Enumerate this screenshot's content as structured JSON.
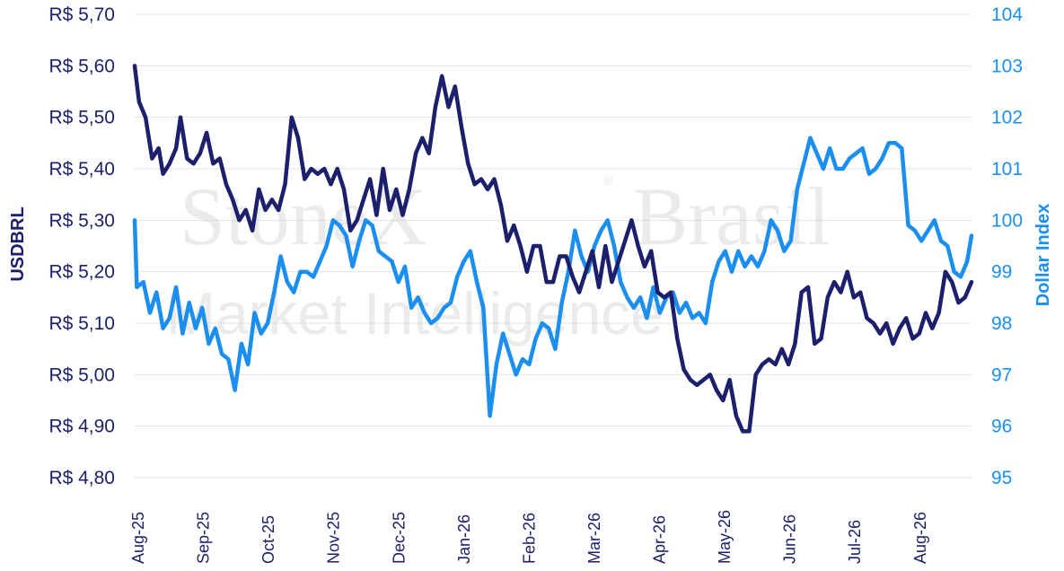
{
  "watermark": {
    "brand": "StoneX",
    "reg": "®",
    "brand2": "Brasil",
    "subtitle": "Market Intelligence"
  },
  "chart_data": {
    "type": "line",
    "title": "",
    "xlabel": "",
    "ylabel": "USDBRL",
    "y2label": "Dollar Index",
    "x_ticks": [
      "Aug-25",
      "Sep-25",
      "Oct-25",
      "Nov-25",
      "Dec-25",
      "Jan-26",
      "Feb-26",
      "Mar-26",
      "Apr-26",
      "May-26",
      "Jun-26",
      "Jul-26",
      "Aug-26"
    ],
    "ylim": [
      4.8,
      5.7
    ],
    "y_ticks": [
      "R$ 4,80",
      "R$ 4,90",
      "R$ 5,00",
      "R$ 5,10",
      "R$ 5,20",
      "R$ 5,30",
      "R$ 5,40",
      "R$ 5,50",
      "R$ 5,60",
      "R$ 5,70"
    ],
    "y2lim": [
      95,
      104
    ],
    "y2_ticks": [
      "95",
      "96",
      "97",
      "98",
      "99",
      "100",
      "101",
      "102",
      "103",
      "104"
    ],
    "grid": true,
    "colors": {
      "usdbrl": "#1c1f6b",
      "dxy": "#1b8ff0"
    },
    "series": [
      {
        "name": "USDBRL",
        "axis": "left",
        "points": [
          [
            "2025-08-01",
            5.6
          ],
          [
            "2025-08-03",
            5.53
          ],
          [
            "2025-08-06",
            5.5
          ],
          [
            "2025-08-09",
            5.42
          ],
          [
            "2025-08-12",
            5.44
          ],
          [
            "2025-08-14",
            5.39
          ],
          [
            "2025-08-17",
            5.41
          ],
          [
            "2025-08-20",
            5.44
          ],
          [
            "2025-08-22",
            5.5
          ],
          [
            "2025-08-25",
            5.42
          ],
          [
            "2025-08-28",
            5.41
          ],
          [
            "2025-08-31",
            5.43
          ],
          [
            "2025-09-03",
            5.47
          ],
          [
            "2025-09-06",
            5.41
          ],
          [
            "2025-09-09",
            5.42
          ],
          [
            "2025-09-12",
            5.37
          ],
          [
            "2025-09-15",
            5.34
          ],
          [
            "2025-09-18",
            5.3
          ],
          [
            "2025-09-21",
            5.32
          ],
          [
            "2025-09-24",
            5.28
          ],
          [
            "2025-09-27",
            5.36
          ],
          [
            "2025-09-30",
            5.32
          ],
          [
            "2025-10-03",
            5.34
          ],
          [
            "2025-10-06",
            5.32
          ],
          [
            "2025-10-09",
            5.37
          ],
          [
            "2025-10-12",
            5.5
          ],
          [
            "2025-10-15",
            5.46
          ],
          [
            "2025-10-18",
            5.38
          ],
          [
            "2025-10-21",
            5.4
          ],
          [
            "2025-10-24",
            5.39
          ],
          [
            "2025-10-27",
            5.4
          ],
          [
            "2025-10-30",
            5.37
          ],
          [
            "2025-11-02",
            5.4
          ],
          [
            "2025-11-05",
            5.36
          ],
          [
            "2025-11-08",
            5.28
          ],
          [
            "2025-11-11",
            5.3
          ],
          [
            "2025-11-14",
            5.34
          ],
          [
            "2025-11-17",
            5.38
          ],
          [
            "2025-11-20",
            5.31
          ],
          [
            "2025-11-23",
            5.4
          ],
          [
            "2025-11-26",
            5.32
          ],
          [
            "2025-11-29",
            5.36
          ],
          [
            "2025-12-02",
            5.31
          ],
          [
            "2025-12-05",
            5.36
          ],
          [
            "2025-12-08",
            5.43
          ],
          [
            "2025-12-11",
            5.46
          ],
          [
            "2025-12-14",
            5.43
          ],
          [
            "2025-12-17",
            5.52
          ],
          [
            "2025-12-20",
            5.58
          ],
          [
            "2025-12-23",
            5.52
          ],
          [
            "2025-12-26",
            5.56
          ],
          [
            "2025-12-29",
            5.48
          ],
          [
            "2026-01-01",
            5.41
          ],
          [
            "2026-01-04",
            5.37
          ],
          [
            "2026-01-07",
            5.38
          ],
          [
            "2026-01-10",
            5.36
          ],
          [
            "2026-01-13",
            5.38
          ],
          [
            "2026-01-16",
            5.33
          ],
          [
            "2026-01-19",
            5.26
          ],
          [
            "2026-01-22",
            5.29
          ],
          [
            "2026-01-25",
            5.25
          ],
          [
            "2026-01-28",
            5.2
          ],
          [
            "2026-01-31",
            5.25
          ],
          [
            "2026-02-03",
            5.25
          ],
          [
            "2026-02-06",
            5.18
          ],
          [
            "2026-02-09",
            5.18
          ],
          [
            "2026-02-12",
            5.23
          ],
          [
            "2026-02-15",
            5.23
          ],
          [
            "2026-02-18",
            5.19
          ],
          [
            "2026-02-21",
            5.16
          ],
          [
            "2026-02-24",
            5.2
          ],
          [
            "2026-02-27",
            5.24
          ],
          [
            "2026-03-02",
            5.17
          ],
          [
            "2026-03-05",
            5.25
          ],
          [
            "2026-03-08",
            5.18
          ],
          [
            "2026-03-11",
            5.22
          ],
          [
            "2026-03-14",
            5.26
          ],
          [
            "2026-03-17",
            5.3
          ],
          [
            "2026-03-20",
            5.25
          ],
          [
            "2026-03-23",
            5.21
          ],
          [
            "2026-03-26",
            5.24
          ],
          [
            "2026-03-29",
            5.16
          ],
          [
            "2026-04-01",
            5.15
          ],
          [
            "2026-04-04",
            5.16
          ],
          [
            "2026-04-07",
            5.07
          ],
          [
            "2026-04-10",
            5.01
          ],
          [
            "2026-04-13",
            4.99
          ],
          [
            "2026-04-16",
            4.98
          ],
          [
            "2026-04-19",
            4.99
          ],
          [
            "2026-04-22",
            5.0
          ],
          [
            "2026-04-25",
            4.97
          ],
          [
            "2026-04-28",
            4.95
          ],
          [
            "2026-05-01",
            4.99
          ],
          [
            "2026-05-04",
            4.92
          ],
          [
            "2026-05-07",
            4.89
          ],
          [
            "2026-05-10",
            4.89
          ],
          [
            "2026-05-13",
            5.0
          ],
          [
            "2026-05-16",
            5.02
          ],
          [
            "2026-05-19",
            5.03
          ],
          [
            "2026-05-22",
            5.02
          ],
          [
            "2026-05-25",
            5.05
          ],
          [
            "2026-05-28",
            5.02
          ],
          [
            "2026-05-31",
            5.06
          ],
          [
            "2026-06-03",
            5.16
          ],
          [
            "2026-06-06",
            5.17
          ],
          [
            "2026-06-09",
            5.06
          ],
          [
            "2026-06-12",
            5.07
          ],
          [
            "2026-06-15",
            5.15
          ],
          [
            "2026-06-18",
            5.18
          ],
          [
            "2026-06-21",
            5.16
          ],
          [
            "2026-06-24",
            5.2
          ],
          [
            "2026-06-27",
            5.15
          ],
          [
            "2026-06-30",
            5.16
          ],
          [
            "2026-07-03",
            5.11
          ],
          [
            "2026-07-06",
            5.1
          ],
          [
            "2026-07-09",
            5.08
          ],
          [
            "2026-07-12",
            5.1
          ],
          [
            "2026-07-15",
            5.06
          ],
          [
            "2026-07-18",
            5.09
          ],
          [
            "2026-07-21",
            5.11
          ],
          [
            "2026-07-24",
            5.07
          ],
          [
            "2026-07-27",
            5.08
          ],
          [
            "2026-07-30",
            5.12
          ],
          [
            "2026-08-02",
            5.09
          ],
          [
            "2026-08-05",
            5.12
          ],
          [
            "2026-08-08",
            5.2
          ],
          [
            "2026-08-11",
            5.18
          ],
          [
            "2026-08-14",
            5.14
          ],
          [
            "2026-08-17",
            5.15
          ],
          [
            "2026-08-20",
            5.18
          ]
        ]
      },
      {
        "name": "Dollar Index",
        "axis": "right",
        "points": [
          [
            "2025-08-01",
            100.0
          ],
          [
            "2025-08-02",
            98.7
          ],
          [
            "2025-08-05",
            98.8
          ],
          [
            "2025-08-08",
            98.2
          ],
          [
            "2025-08-11",
            98.6
          ],
          [
            "2025-08-14",
            97.9
          ],
          [
            "2025-08-17",
            98.1
          ],
          [
            "2025-08-20",
            98.7
          ],
          [
            "2025-08-23",
            97.8
          ],
          [
            "2025-08-26",
            98.4
          ],
          [
            "2025-08-29",
            97.9
          ],
          [
            "2025-09-01",
            98.3
          ],
          [
            "2025-09-04",
            97.6
          ],
          [
            "2025-09-07",
            97.9
          ],
          [
            "2025-09-10",
            97.4
          ],
          [
            "2025-09-13",
            97.3
          ],
          [
            "2025-09-16",
            96.7
          ],
          [
            "2025-09-19",
            97.6
          ],
          [
            "2025-09-22",
            97.2
          ],
          [
            "2025-09-25",
            98.2
          ],
          [
            "2025-09-28",
            97.8
          ],
          [
            "2025-10-01",
            98.0
          ],
          [
            "2025-10-04",
            98.6
          ],
          [
            "2025-10-07",
            99.3
          ],
          [
            "2025-10-10",
            98.8
          ],
          [
            "2025-10-13",
            98.6
          ],
          [
            "2025-10-16",
            99.0
          ],
          [
            "2025-10-19",
            99.0
          ],
          [
            "2025-10-22",
            98.9
          ],
          [
            "2025-10-25",
            99.2
          ],
          [
            "2025-10-28",
            99.5
          ],
          [
            "2025-10-31",
            100.0
          ],
          [
            "2025-11-03",
            99.9
          ],
          [
            "2025-11-06",
            99.7
          ],
          [
            "2025-11-09",
            99.1
          ],
          [
            "2025-11-12",
            99.6
          ],
          [
            "2025-11-15",
            100.0
          ],
          [
            "2025-11-18",
            99.9
          ],
          [
            "2025-11-21",
            99.4
          ],
          [
            "2025-11-24",
            99.3
          ],
          [
            "2025-11-27",
            99.2
          ],
          [
            "2025-11-30",
            98.8
          ],
          [
            "2025-12-03",
            99.1
          ],
          [
            "2025-12-06",
            98.3
          ],
          [
            "2025-12-09",
            98.5
          ],
          [
            "2025-12-12",
            98.2
          ],
          [
            "2025-12-15",
            98.0
          ],
          [
            "2025-12-18",
            98.1
          ],
          [
            "2025-12-21",
            98.3
          ],
          [
            "2025-12-24",
            98.4
          ],
          [
            "2025-12-27",
            98.9
          ],
          [
            "2025-12-30",
            99.2
          ],
          [
            "2026-01-02",
            99.4
          ],
          [
            "2026-01-05",
            98.8
          ],
          [
            "2026-01-08",
            98.3
          ],
          [
            "2026-01-11",
            96.2
          ],
          [
            "2026-01-14",
            97.2
          ],
          [
            "2026-01-17",
            97.8
          ],
          [
            "2026-01-20",
            97.4
          ],
          [
            "2026-01-23",
            97.0
          ],
          [
            "2026-01-26",
            97.3
          ],
          [
            "2026-01-29",
            97.2
          ],
          [
            "2026-02-01",
            97.7
          ],
          [
            "2026-02-04",
            98.0
          ],
          [
            "2026-02-07",
            97.9
          ],
          [
            "2026-02-10",
            97.5
          ],
          [
            "2026-02-13",
            98.4
          ],
          [
            "2026-02-16",
            99.0
          ],
          [
            "2026-02-19",
            99.8
          ],
          [
            "2026-02-22",
            99.3
          ],
          [
            "2026-02-25",
            99.0
          ],
          [
            "2026-02-28",
            99.5
          ],
          [
            "2026-03-03",
            99.8
          ],
          [
            "2026-03-06",
            100.0
          ],
          [
            "2026-03-09",
            99.5
          ],
          [
            "2026-03-12",
            98.8
          ],
          [
            "2026-03-15",
            98.5
          ],
          [
            "2026-03-18",
            98.3
          ],
          [
            "2026-03-21",
            98.5
          ],
          [
            "2026-03-24",
            98.1
          ],
          [
            "2026-03-27",
            98.7
          ],
          [
            "2026-03-30",
            98.2
          ],
          [
            "2026-04-02",
            98.5
          ],
          [
            "2026-04-05",
            98.6
          ],
          [
            "2026-04-08",
            98.2
          ],
          [
            "2026-04-11",
            98.4
          ],
          [
            "2026-04-14",
            98.1
          ],
          [
            "2026-04-17",
            98.2
          ],
          [
            "2026-04-20",
            98.0
          ],
          [
            "2026-04-23",
            98.8
          ],
          [
            "2026-04-26",
            99.2
          ],
          [
            "2026-04-29",
            99.4
          ],
          [
            "2026-05-02",
            99.0
          ],
          [
            "2026-05-05",
            99.4
          ],
          [
            "2026-05-08",
            99.1
          ],
          [
            "2026-05-11",
            99.3
          ],
          [
            "2026-05-14",
            99.1
          ],
          [
            "2026-05-17",
            99.4
          ],
          [
            "2026-05-20",
            100.0
          ],
          [
            "2026-05-23",
            99.8
          ],
          [
            "2026-05-26",
            99.4
          ],
          [
            "2026-05-29",
            99.6
          ],
          [
            "2026-06-01",
            100.6
          ],
          [
            "2026-06-04",
            101.1
          ],
          [
            "2026-06-07",
            101.6
          ],
          [
            "2026-06-10",
            101.3
          ],
          [
            "2026-06-13",
            101.0
          ],
          [
            "2026-06-16",
            101.4
          ],
          [
            "2026-06-19",
            101.0
          ],
          [
            "2026-06-22",
            101.0
          ],
          [
            "2026-06-25",
            101.2
          ],
          [
            "2026-06-28",
            101.3
          ],
          [
            "2026-07-01",
            101.4
          ],
          [
            "2026-07-04",
            100.9
          ],
          [
            "2026-07-07",
            101.0
          ],
          [
            "2026-07-10",
            101.2
          ],
          [
            "2026-07-13",
            101.5
          ],
          [
            "2026-07-16",
            101.5
          ],
          [
            "2026-07-19",
            101.4
          ],
          [
            "2026-07-22",
            99.9
          ],
          [
            "2026-07-25",
            99.8
          ],
          [
            "2026-07-28",
            99.6
          ],
          [
            "2026-07-31",
            99.8
          ],
          [
            "2026-08-03",
            100.0
          ],
          [
            "2026-08-06",
            99.6
          ],
          [
            "2026-08-09",
            99.5
          ],
          [
            "2026-08-12",
            99.0
          ],
          [
            "2026-08-15",
            98.9
          ],
          [
            "2026-08-18",
            99.2
          ],
          [
            "2026-08-20",
            99.7
          ]
        ]
      }
    ]
  }
}
